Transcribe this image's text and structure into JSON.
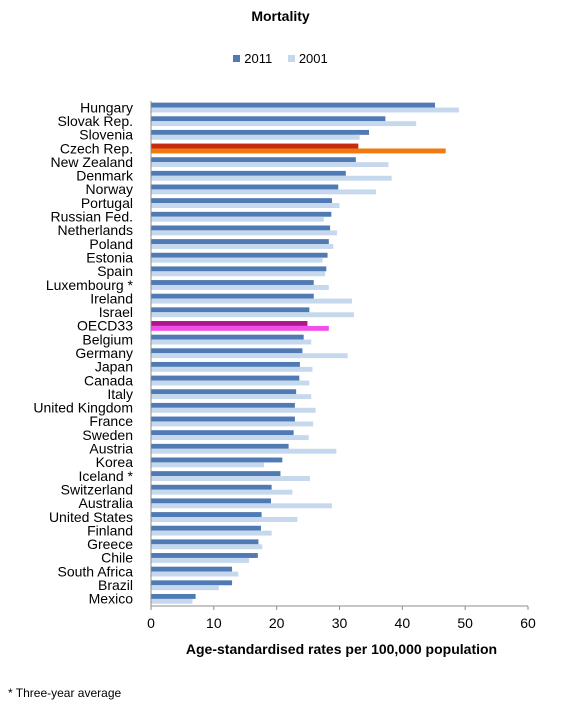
{
  "chart_data": {
    "type": "bar",
    "orientation": "horizontal",
    "title": "Mortality",
    "xlabel": "Age-standardised rates per 100,000 population",
    "ylabel": "",
    "xlim": [
      0,
      60
    ],
    "xticks": [
      "0",
      "10",
      "20",
      "30",
      "40",
      "50",
      "60"
    ],
    "grid": false,
    "legend_position": "top",
    "categories": [
      "Hungary",
      "Slovak Rep.",
      "Slovenia",
      "Czech Rep.",
      "New Zealand",
      "Denmark",
      "Norway",
      "Portugal",
      "Russian Fed.",
      "Netherlands",
      "Poland",
      "Estonia",
      "Spain",
      "Luxembourg *",
      "Ireland",
      "Israel",
      "OECD33",
      "Belgium",
      "Germany",
      "Japan",
      "Canada",
      "Italy",
      "United Kingdom",
      "France",
      "Sweden",
      "Austria",
      "Korea",
      "Iceland *",
      "Switzerland",
      "Australia",
      "United States",
      "Finland",
      "Greece",
      "Chile",
      "South Africa",
      "Brazil",
      "Mexico"
    ],
    "series": [
      {
        "name": "2011",
        "color": "#4f7ab3",
        "values": [
          45.2,
          37.3,
          34.7,
          33.0,
          32.6,
          31.0,
          29.8,
          28.8,
          28.7,
          28.5,
          28.3,
          28.1,
          27.9,
          25.9,
          25.9,
          25.2,
          24.9,
          24.3,
          24.1,
          23.7,
          23.6,
          23.1,
          22.9,
          22.9,
          22.7,
          21.9,
          20.9,
          20.6,
          19.2,
          19.1,
          17.6,
          17.5,
          17.1,
          17.0,
          12.9,
          12.9,
          7.1
        ]
      },
      {
        "name": "2001",
        "color": "#c6d8ee",
        "values": [
          49.0,
          42.2,
          33.2,
          46.9,
          37.8,
          38.3,
          35.8,
          30.0,
          27.5,
          29.6,
          29.0,
          27.3,
          27.7,
          28.3,
          32.0,
          32.3,
          28.3,
          25.5,
          31.3,
          25.7,
          25.2,
          25.5,
          26.2,
          25.8,
          25.1,
          29.5,
          18.0,
          25.3,
          22.5,
          28.8,
          23.3,
          19.2,
          17.7,
          15.6,
          13.9,
          10.8,
          6.6
        ]
      }
    ],
    "highlights": {
      "Czech Rep.": [
        "#c62a10",
        "#f07a10"
      ],
      "OECD33": [
        "#b0168c",
        "#f050e8"
      ]
    }
  },
  "footnote": "* Three-year average"
}
